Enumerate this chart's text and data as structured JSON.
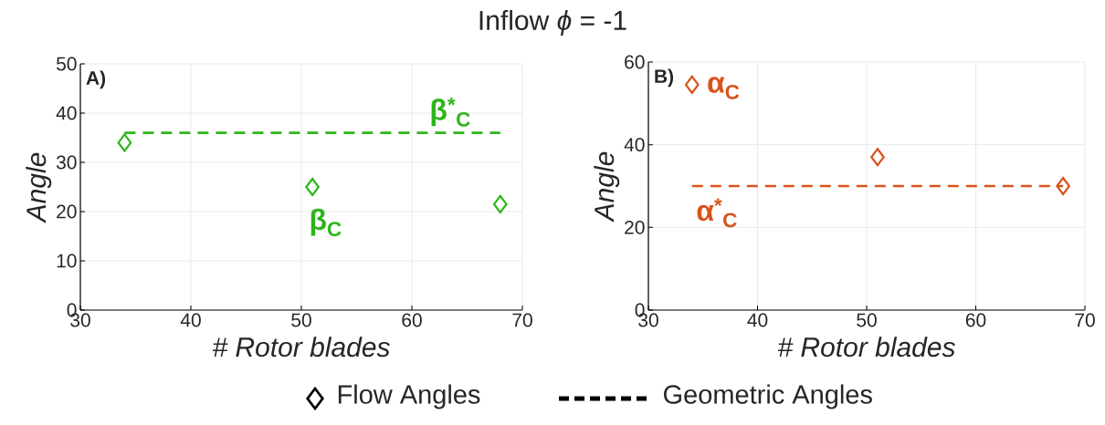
{
  "chart_data": [
    {
      "type": "scatter",
      "title": "Inflow *ϕ* = -1",
      "xlabel": "# Rotor blades",
      "ylabel": "Angle",
      "xlim": [
        30,
        70
      ],
      "ylim": [
        0,
        50
      ],
      "xticks": [
        30,
        40,
        50,
        60,
        70
      ],
      "yticks": [
        0,
        10,
        20,
        30,
        40,
        50
      ],
      "grid": true,
      "series": [
        {
          "marker": "diamond",
          "color": "#2db51a",
          "x": [
            34,
            51,
            68
          ],
          "values": [
            34,
            25,
            21.5
          ]
        },
        {
          "type": "line",
          "line_style": "dashed",
          "color": "#2db51a",
          "x": [
            34,
            68
          ],
          "values": [
            36,
            36
          ]
        }
      ],
      "annotations": [
        "A)",
        "β$^{*}$$_{C}$",
        "β$_{C}$",
        "Flow Angles",
        "Geometric Angles"
      ]
    },
    {
      "type": "scatter",
      "xlabel": "# Rotor blades",
      "ylabel": "Angle",
      "xlim": [
        30,
        70
      ],
      "ylim": [
        0,
        60
      ],
      "xticks": [
        30,
        40,
        50,
        60,
        70
      ],
      "yticks": [
        0,
        20,
        40,
        60
      ],
      "grid": true,
      "series": [
        {
          "marker": "diamond",
          "color": "#d95319",
          "x": [
            34,
            51,
            68
          ],
          "values": [
            54.5,
            37,
            30
          ]
        },
        {
          "type": "line",
          "line_style": "dashed",
          "color": "#d95319",
          "x": [
            34,
            68
          ],
          "values": [
            30,
            30
          ]
        }
      ],
      "annotations": [
        "B)",
        "α$_{C}$",
        "α$^{*}$$_{C}$"
      ]
    }
  ]
}
